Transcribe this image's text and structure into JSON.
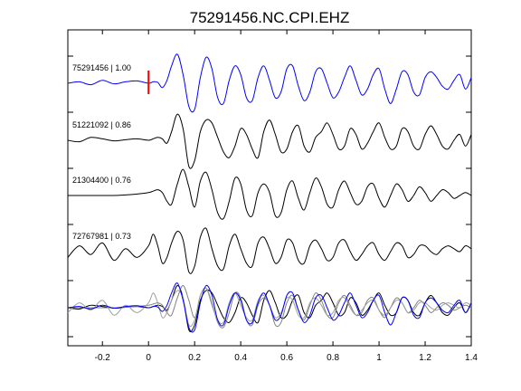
{
  "chart_data": {
    "type": "line",
    "title": "75291456.NC.CPI.EHZ",
    "xlabel": "",
    "ylabel": "",
    "xlim": [
      -0.35,
      1.4
    ],
    "xticks": [
      -0.2,
      0,
      0.2,
      0.4,
      0.6,
      0.8,
      1,
      1.2,
      1.4
    ],
    "xtick_labels": [
      "-0.2",
      "0",
      "0.2",
      "0.4",
      "0.6",
      "0.8",
      "1",
      "1.2",
      "1.4"
    ],
    "grid": false,
    "marker": {
      "x": 0,
      "color": "#ff0000"
    },
    "series": [
      {
        "label": "75291456 | 1.00",
        "color": "#0000ff",
        "x": [
          -0.35,
          -0.3,
          -0.25,
          -0.2,
          -0.15,
          -0.1,
          -0.05,
          0,
          0.02,
          0.04,
          0.06,
          0.08,
          0.1,
          0.125,
          0.15,
          0.175,
          0.2,
          0.225,
          0.25,
          0.275,
          0.3,
          0.325,
          0.35,
          0.375,
          0.4,
          0.425,
          0.45,
          0.475,
          0.5,
          0.525,
          0.55,
          0.575,
          0.6,
          0.625,
          0.65,
          0.675,
          0.7,
          0.725,
          0.75,
          0.775,
          0.8,
          0.825,
          0.85,
          0.875,
          0.9,
          0.925,
          0.95,
          0.975,
          1,
          1.025,
          1.05,
          1.075,
          1.1,
          1.125,
          1.15,
          1.175,
          1.2,
          1.225,
          1.25,
          1.275,
          1.3,
          1.325,
          1.35,
          1.375,
          1.4
        ],
        "y": [
          0,
          0.05,
          -0.05,
          0.1,
          -0.02,
          0.05,
          0.08,
          0,
          0.05,
          0.03,
          -0.15,
          0.1,
          0.6,
          1.0,
          0.3,
          -0.8,
          -0.9,
          0.2,
          0.9,
          0.5,
          -0.5,
          -0.7,
          0.1,
          0.6,
          0.3,
          -0.5,
          -0.6,
          0.2,
          0.6,
          0.1,
          -0.5,
          -0.3,
          0.5,
          0.6,
          -0.1,
          -0.6,
          -0.3,
          0.4,
          0.5,
          0,
          -0.5,
          -0.3,
          0.2,
          0.6,
          0.1,
          -0.4,
          -0.2,
          0.3,
          0.5,
          -0.2,
          -0.7,
          -0.2,
          0.4,
          0.3,
          -0.3,
          -0.4,
          0.2,
          0.4,
          0.2,
          -0.1,
          -0.2,
          0.1,
          0.3,
          -0.2,
          0.2
        ]
      },
      {
        "label": "51221092 | 0.86",
        "color": "#000000",
        "x": [
          -0.35,
          -0.3,
          -0.25,
          -0.2,
          -0.15,
          -0.1,
          -0.05,
          0,
          0.02,
          0.04,
          0.06,
          0.08,
          0.1,
          0.125,
          0.15,
          0.175,
          0.2,
          0.225,
          0.25,
          0.275,
          0.3,
          0.325,
          0.35,
          0.375,
          0.4,
          0.425,
          0.45,
          0.475,
          0.5,
          0.525,
          0.55,
          0.575,
          0.6,
          0.625,
          0.65,
          0.675,
          0.7,
          0.725,
          0.75,
          0.775,
          0.8,
          0.825,
          0.85,
          0.875,
          0.9,
          0.925,
          0.95,
          0.975,
          1,
          1.025,
          1.05,
          1.075,
          1.1,
          1.125,
          1.15,
          1.175,
          1.2,
          1.225,
          1.25,
          1.275,
          1.3,
          1.325,
          1.35,
          1.375,
          1.4
        ],
        "y": [
          0,
          -0.05,
          0.1,
          0.05,
          -0.02,
          0.02,
          0.05,
          0,
          0.05,
          0.1,
          0.05,
          -0.1,
          0.3,
          0.9,
          0.4,
          -0.9,
          -0.7,
          0.3,
          0.7,
          0.6,
          0.1,
          -0.4,
          -0.6,
          -0.2,
          0.4,
          0.2,
          -0.3,
          -0.6,
          0.3,
          0.7,
          0.2,
          -0.4,
          -0.3,
          0.3,
          0.5,
          -0.2,
          -0.4,
          0.1,
          0.3,
          0.6,
          0.2,
          -0.3,
          -0.2,
          0.4,
          0.2,
          -0.3,
          -0.1,
          0.3,
          0.6,
          0.1,
          -0.3,
          -0.2,
          0.4,
          0.3,
          -0.2,
          -0.3,
          0.2,
          0.5,
          0.2,
          -0.2,
          -0.3,
          0,
          0.2,
          -0.2,
          0.2
        ]
      },
      {
        "label": "21304400 | 0.76",
        "color": "#000000",
        "x": [
          -0.35,
          -0.3,
          -0.25,
          -0.2,
          -0.15,
          -0.1,
          -0.05,
          0,
          0.02,
          0.04,
          0.06,
          0.08,
          0.1,
          0.125,
          0.15,
          0.175,
          0.2,
          0.225,
          0.25,
          0.275,
          0.3,
          0.325,
          0.35,
          0.375,
          0.4,
          0.425,
          0.45,
          0.475,
          0.5,
          0.525,
          0.55,
          0.575,
          0.6,
          0.625,
          0.65,
          0.675,
          0.7,
          0.725,
          0.75,
          0.775,
          0.8,
          0.825,
          0.85,
          0.875,
          0.9,
          0.925,
          0.95,
          0.975,
          1,
          1.025,
          1.05,
          1.075,
          1.1,
          1.125,
          1.15,
          1.175,
          1.2,
          1.225,
          1.25,
          1.275,
          1.3,
          1.325,
          1.35,
          1.375,
          1.4
        ],
        "y": [
          0,
          0,
          0,
          0,
          0,
          0.02,
          0.05,
          0.1,
          0.15,
          0.2,
          0.1,
          -0.2,
          -0.3,
          0.4,
          0.9,
          0.3,
          -0.4,
          0.5,
          0.8,
          0.2,
          -0.6,
          -0.8,
          -0.2,
          0.6,
          0.4,
          -0.5,
          -0.7,
          0.1,
          0.4,
          0.1,
          -0.7,
          -0.6,
          0.2,
          0.5,
          -0.1,
          -0.5,
          0.1,
          0.6,
          0.3,
          -0.3,
          -0.4,
          0.2,
          0.5,
          0.1,
          -0.3,
          -0.2,
          0.3,
          0.4,
          -0.1,
          -0.4,
          0,
          0.4,
          0.2,
          -0.2,
          0,
          0.3,
          0.1,
          -0.2,
          0,
          0.2,
          0.1,
          -0.1,
          0,
          0.1,
          0
        ]
      },
      {
        "label": "72767981 | 0.73",
        "color": "#000000",
        "x": [
          -0.35,
          -0.3,
          -0.25,
          -0.2,
          -0.15,
          -0.1,
          -0.05,
          0,
          0.02,
          0.04,
          0.06,
          0.08,
          0.1,
          0.125,
          0.15,
          0.175,
          0.2,
          0.225,
          0.25,
          0.275,
          0.3,
          0.325,
          0.35,
          0.375,
          0.4,
          0.425,
          0.45,
          0.475,
          0.5,
          0.525,
          0.55,
          0.575,
          0.6,
          0.625,
          0.65,
          0.675,
          0.7,
          0.725,
          0.75,
          0.775,
          0.8,
          0.825,
          0.85,
          0.875,
          0.9,
          0.925,
          0.95,
          0.975,
          1,
          1.025,
          1.05,
          1.075,
          1.1,
          1.125,
          1.15,
          1.175,
          1.2,
          1.225,
          1.25,
          1.275,
          1.3,
          1.325,
          1.35,
          1.375,
          1.4
        ],
        "y": [
          -0.2,
          0.2,
          -0.1,
          0.3,
          -0.3,
          0.1,
          -0.2,
          0.2,
          0.6,
          0.2,
          -0.4,
          -0.2,
          0.3,
          0.7,
          0.4,
          -0.7,
          -0.5,
          0.5,
          0.8,
          0.1,
          -0.5,
          -0.6,
          0.2,
          0.6,
          0.1,
          -0.4,
          -0.5,
          0.3,
          0.5,
          0.1,
          -0.4,
          -0.2,
          0.4,
          0.3,
          -0.3,
          -0.4,
          0.2,
          0.4,
          0.1,
          -0.3,
          -0.2,
          0.3,
          0.4,
          0,
          -0.3,
          -0.1,
          0.2,
          0.3,
          -0.1,
          -0.3,
          0,
          0.3,
          0.2,
          -0.2,
          -0.1,
          0.2,
          0.2,
          0,
          -0.1,
          0.1,
          0.2,
          0.1,
          0,
          0.2,
          0.1
        ]
      }
    ],
    "overlay": {
      "description_free": true,
      "series_refs": [
        0,
        1,
        2,
        3
      ],
      "colors": [
        "#0000ff",
        "#000000",
        "#808080",
        "#a0a0a0"
      ]
    }
  }
}
